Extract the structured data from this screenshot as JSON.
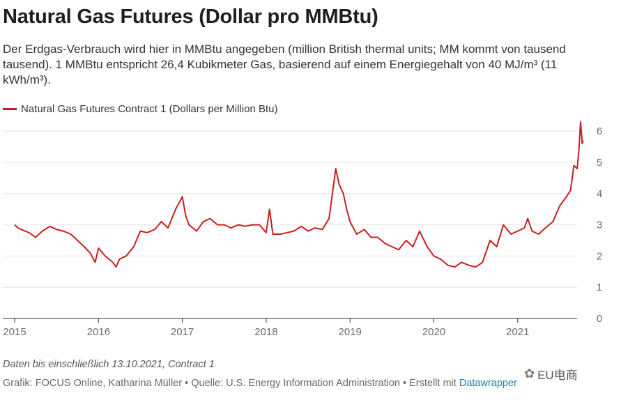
{
  "title": "Natural Gas Futures (Dollar pro MMBtu)",
  "subtitle": "Der Erdgas-Verbrauch wird hier in MMBtu angegeben (million British thermal units; MM kommt von tausend tausend). 1 MMBtu entspricht 26,4 Kubikmeter Gas, basierend auf einem Energiegehalt von 40 MJ/m³ (11 kWh/m³).",
  "legend_label": "Natural Gas Futures Contract 1 (Dollars per Million Btu)",
  "note": "Daten bis einschließlich 13.10.2021, Contract 1",
  "credit": "Grafik: FOCUS Online, Katharina Müller • Quelle: U.S. Energy Information Administration • Erstellt mit ",
  "credit_tool": "Datawrapper",
  "watermark": "EU电商",
  "colors": {
    "line": "#c71e1d",
    "tool_link": "#1d81a2"
  },
  "chart_data": {
    "type": "line",
    "title": "Natural Gas Futures (Dollar pro MMBtu)",
    "ylim": [
      0,
      6.5
    ],
    "y_ticks": [
      0,
      1,
      2,
      3,
      4,
      5,
      6
    ],
    "y_tick_labels": [
      "0",
      "1",
      "2",
      "3",
      "4",
      "5",
      "6"
    ],
    "y_axis_side": "right",
    "x_tick_labels": [
      "2015",
      "2016",
      "2017",
      "2018",
      "2019",
      "2020",
      "2021"
    ],
    "grid": true,
    "legend_position": "top-left",
    "series": [
      {
        "name": "Natural Gas Futures Contract 1 (Dollars per Million Btu)",
        "x": [
          2015.0,
          2015.04,
          2015.08,
          2015.17,
          2015.25,
          2015.33,
          2015.42,
          2015.5,
          2015.58,
          2015.67,
          2015.75,
          2015.83,
          2015.9,
          2015.96,
          2016.0,
          2016.08,
          2016.17,
          2016.21,
          2016.25,
          2016.33,
          2016.42,
          2016.5,
          2016.58,
          2016.67,
          2016.75,
          2016.83,
          2016.92,
          2017.0,
          2017.04,
          2017.08,
          2017.17,
          2017.25,
          2017.33,
          2017.42,
          2017.5,
          2017.58,
          2017.67,
          2017.75,
          2017.83,
          2017.92,
          2018.0,
          2018.04,
          2018.08,
          2018.17,
          2018.25,
          2018.33,
          2018.42,
          2018.5,
          2018.58,
          2018.67,
          2018.75,
          2018.83,
          2018.87,
          2018.92,
          2018.96,
          2019.0,
          2019.08,
          2019.17,
          2019.25,
          2019.33,
          2019.42,
          2019.5,
          2019.58,
          2019.67,
          2019.75,
          2019.83,
          2019.92,
          2020.0,
          2020.08,
          2020.17,
          2020.25,
          2020.33,
          2020.42,
          2020.5,
          2020.58,
          2020.67,
          2020.75,
          2020.83,
          2020.92,
          2021.0,
          2021.08,
          2021.12,
          2021.17,
          2021.25,
          2021.33,
          2021.42,
          2021.5,
          2021.58,
          2021.63,
          2021.67,
          2021.71,
          2021.73,
          2021.75,
          2021.77,
          2021.78
        ],
        "y": [
          3.0,
          2.9,
          2.85,
          2.75,
          2.6,
          2.8,
          2.95,
          2.85,
          2.8,
          2.7,
          2.5,
          2.3,
          2.1,
          1.8,
          2.25,
          2.0,
          1.8,
          1.65,
          1.9,
          2.0,
          2.3,
          2.8,
          2.75,
          2.85,
          3.1,
          2.9,
          3.5,
          3.9,
          3.3,
          3.0,
          2.8,
          3.1,
          3.2,
          3.0,
          3.0,
          2.9,
          3.0,
          2.95,
          3.0,
          3.0,
          2.75,
          3.5,
          2.7,
          2.7,
          2.75,
          2.8,
          2.95,
          2.8,
          2.9,
          2.85,
          3.2,
          4.8,
          4.3,
          4.0,
          3.5,
          3.1,
          2.7,
          2.85,
          2.6,
          2.6,
          2.4,
          2.3,
          2.2,
          2.5,
          2.3,
          2.8,
          2.3,
          2.0,
          1.9,
          1.7,
          1.65,
          1.8,
          1.7,
          1.65,
          1.8,
          2.5,
          2.3,
          3.0,
          2.7,
          2.8,
          2.9,
          3.2,
          2.8,
          2.7,
          2.9,
          3.1,
          3.6,
          3.9,
          4.1,
          4.9,
          4.8,
          5.4,
          6.3,
          5.6,
          5.7
        ]
      }
    ]
  }
}
